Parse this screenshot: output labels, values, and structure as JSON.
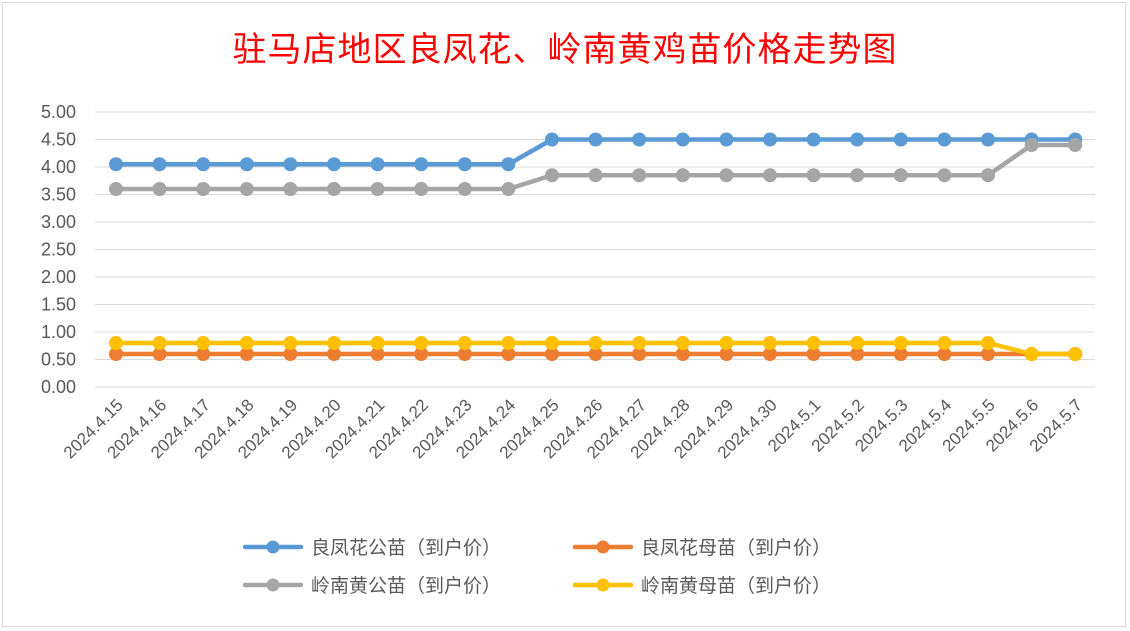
{
  "chart_data": {
    "type": "line",
    "title": "驻马店地区良凤花、岭南黄鸡苗价格走势图",
    "xlabel": "",
    "ylabel": "",
    "ylim": [
      0,
      5
    ],
    "yticks": [
      "0.00",
      "0.50",
      "1.00",
      "1.50",
      "2.00",
      "2.50",
      "3.00",
      "3.50",
      "4.00",
      "4.50",
      "5.00"
    ],
    "grid": true,
    "legend_position": "bottom",
    "categories": [
      "2024.4.15",
      "2024.4.16",
      "2024.4.17",
      "2024.4.18",
      "2024.4.19",
      "2024.4.20",
      "2024.4.21",
      "2024.4.22",
      "2024.4.23",
      "2024.4.24",
      "2024.4.25",
      "2024.4.26",
      "2024.4.27",
      "2024.4.28",
      "2024.4.29",
      "2024.4.30",
      "2024.5.1",
      "2024.5.2",
      "2024.5.3",
      "2024.5.4",
      "2024.5.5",
      "2024.5.6",
      "2024.5.7"
    ],
    "series": [
      {
        "name": "良凤花公苗（到户价）",
        "color": "#5b9bd5",
        "values": [
          4.05,
          4.05,
          4.05,
          4.05,
          4.05,
          4.05,
          4.05,
          4.05,
          4.05,
          4.05,
          4.5,
          4.5,
          4.5,
          4.5,
          4.5,
          4.5,
          4.5,
          4.5,
          4.5,
          4.5,
          4.5,
          4.5,
          4.5
        ]
      },
      {
        "name": "良凤花母苗（到户价）",
        "color": "#ed7d31",
        "values": [
          0.6,
          0.6,
          0.6,
          0.6,
          0.6,
          0.6,
          0.6,
          0.6,
          0.6,
          0.6,
          0.6,
          0.6,
          0.6,
          0.6,
          0.6,
          0.6,
          0.6,
          0.6,
          0.6,
          0.6,
          0.6,
          0.6,
          0.6
        ]
      },
      {
        "name": "岭南黄公苗（到户价）",
        "color": "#a5a5a5",
        "values": [
          3.6,
          3.6,
          3.6,
          3.6,
          3.6,
          3.6,
          3.6,
          3.6,
          3.6,
          3.6,
          3.85,
          3.85,
          3.85,
          3.85,
          3.85,
          3.85,
          3.85,
          3.85,
          3.85,
          3.85,
          3.85,
          4.4,
          4.4
        ]
      },
      {
        "name": "岭南黄母苗（到户价）",
        "color": "#ffc000",
        "values": [
          0.8,
          0.8,
          0.8,
          0.8,
          0.8,
          0.8,
          0.8,
          0.8,
          0.8,
          0.8,
          0.8,
          0.8,
          0.8,
          0.8,
          0.8,
          0.8,
          0.8,
          0.8,
          0.8,
          0.8,
          0.8,
          0.6,
          0.6
        ]
      }
    ]
  }
}
